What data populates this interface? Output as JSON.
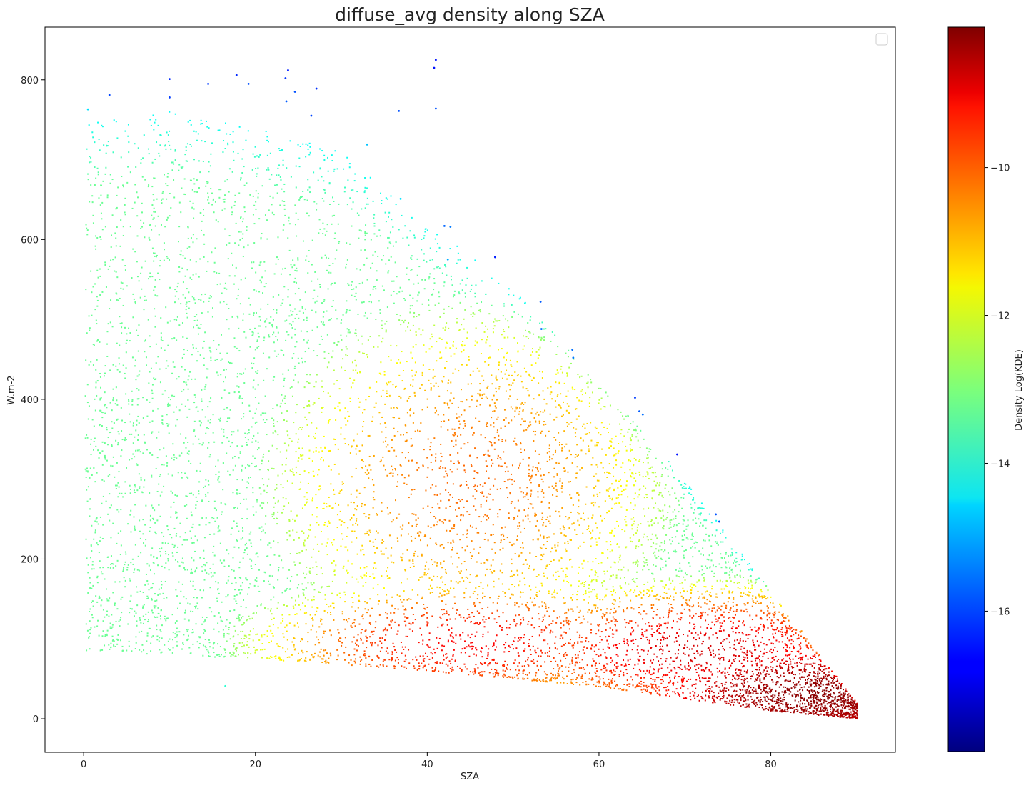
{
  "chart_data": {
    "type": "scatter",
    "title": "diffuse_avg density along SZA",
    "xlabel": "SZA",
    "ylabel": "W.m-2",
    "xlim": [
      -4.5,
      94.5
    ],
    "ylim": [
      -42,
      866
    ],
    "xticks": [
      0,
      20,
      40,
      60,
      80
    ],
    "yticks": [
      0,
      200,
      400,
      600,
      800
    ],
    "grid": false,
    "legend": {
      "placement": "top-right",
      "entries": []
    },
    "colorbar": {
      "label": "Density Log(KDE)",
      "colormap": "jet",
      "vmin": -17.9,
      "vmax": -8.1,
      "ticks": [
        -10,
        -12,
        -14,
        -16
      ]
    },
    "density_envelope": {
      "description_points_sza": [
        0,
        10,
        20,
        30,
        40,
        50,
        60,
        70,
        80,
        90
      ],
      "upper_bound": [
        750,
        760,
        740,
        710,
        620,
        540,
        420,
        300,
        160,
        20
      ],
      "lower_bound": [
        85,
        80,
        75,
        68,
        60,
        50,
        40,
        25,
        10,
        0
      ]
    },
    "density_cores": [
      {
        "sza": 45,
        "value": 300,
        "log_kde": -10.3
      },
      {
        "sza": 45,
        "value": 95,
        "log_kde": -9.3
      },
      {
        "sza": 72,
        "value": 85,
        "log_kde": -8.9
      },
      {
        "sza": 85,
        "value": 30,
        "log_kde": -8.2
      }
    ],
    "sparse_points": [
      {
        "x": 41.0,
        "y": 825,
        "c": -16.5
      },
      {
        "x": 40.8,
        "y": 815,
        "c": -16.5
      },
      {
        "x": 23.8,
        "y": 812,
        "c": -16.4
      },
      {
        "x": 17.8,
        "y": 806,
        "c": -16.3
      },
      {
        "x": 10.0,
        "y": 801,
        "c": -16.3
      },
      {
        "x": 23.5,
        "y": 802,
        "c": -16.2
      },
      {
        "x": 14.5,
        "y": 795,
        "c": -16.1
      },
      {
        "x": 19.2,
        "y": 795,
        "c": -15.9
      },
      {
        "x": 27.1,
        "y": 789,
        "c": -16.2
      },
      {
        "x": 24.6,
        "y": 785,
        "c": -15.9
      },
      {
        "x": 3.0,
        "y": 781,
        "c": -16.0
      },
      {
        "x": 10.0,
        "y": 778,
        "c": -16.1
      },
      {
        "x": 23.6,
        "y": 773,
        "c": -15.8
      },
      {
        "x": 41.0,
        "y": 764,
        "c": -15.9
      },
      {
        "x": 36.7,
        "y": 761,
        "c": -15.9
      },
      {
        "x": 0.5,
        "y": 763,
        "c": -14.5
      },
      {
        "x": 26.5,
        "y": 755,
        "c": -16.0
      },
      {
        "x": 47.9,
        "y": 578,
        "c": -16.4
      },
      {
        "x": 53.2,
        "y": 522,
        "c": -15.8
      },
      {
        "x": 53.3,
        "y": 488,
        "c": -15.6
      },
      {
        "x": 56.9,
        "y": 462,
        "c": -15.6
      },
      {
        "x": 57.0,
        "y": 452,
        "c": -15.5
      },
      {
        "x": 64.2,
        "y": 402,
        "c": -16.1
      },
      {
        "x": 64.7,
        "y": 385,
        "c": -15.8
      },
      {
        "x": 65.1,
        "y": 381,
        "c": -15.6
      },
      {
        "x": 69.1,
        "y": 331,
        "c": -16.5
      },
      {
        "x": 73.6,
        "y": 256,
        "c": -15.9
      },
      {
        "x": 74.0,
        "y": 247,
        "c": -15.8
      },
      {
        "x": 42.0,
        "y": 617,
        "c": -15.7
      },
      {
        "x": 42.7,
        "y": 616,
        "c": -15.5
      },
      {
        "x": 42.4,
        "y": 575,
        "c": -15.0
      },
      {
        "x": 36.9,
        "y": 651,
        "c": -14.5
      },
      {
        "x": 33.0,
        "y": 719,
        "c": -14.8
      },
      {
        "x": 16.5,
        "y": 41,
        "c": -13.8
      }
    ]
  }
}
